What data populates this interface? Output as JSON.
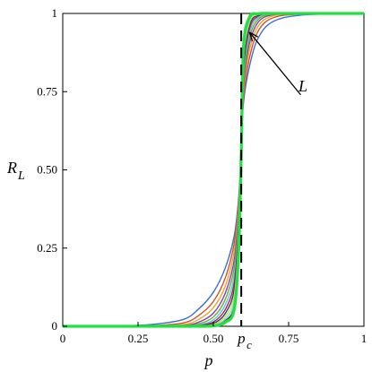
{
  "chart_data": {
    "type": "line",
    "title": "",
    "xlabel": "p",
    "ylabel": "R",
    "ylabel_subscript": "L",
    "xlim": [
      0,
      1
    ],
    "ylim": [
      0,
      1
    ],
    "grid": false,
    "legend": "none",
    "x_ticks": [
      {
        "value": 0,
        "label": "0"
      },
      {
        "value": 0.25,
        "label": "0.25"
      },
      {
        "value": 0.5,
        "label": "0.50"
      },
      {
        "value": 0.75,
        "label": "0.75"
      },
      {
        "value": 1,
        "label": "1"
      }
    ],
    "y_ticks": [
      {
        "value": 0,
        "label": "0"
      },
      {
        "value": 0.25,
        "label": "0.25"
      },
      {
        "value": 0.5,
        "label": "0.50"
      },
      {
        "value": 0.75,
        "label": "0.75"
      },
      {
        "value": 1,
        "label": "1"
      }
    ],
    "critical_line": {
      "x": 0.5927,
      "label": "p",
      "label_subscript": "c",
      "style": "dashed"
    },
    "crossing_point": {
      "x": 0.5927,
      "y": 0.5927
    },
    "annotation": {
      "text": "L",
      "arrow_from": [
        0.79,
        0.74
      ],
      "arrow_to": [
        0.62,
        0.94
      ]
    },
    "series": [
      {
        "color": "#3b6fcf",
        "values": [
          0.0,
          0.0001,
          0.0011,
          0.0061,
          0.0216,
          0.0542,
          0.1087,
          0.1875,
          0.2924,
          0.4231,
          0.5724,
          0.7135,
          0.8314,
          0.9236,
          0.9748,
          0.9955,
          1.0
        ]
      },
      {
        "color": "#d4502a",
        "values": [
          0.0,
          0.0,
          0.0002,
          0.0021,
          0.0106,
          0.0335,
          0.0791,
          0.1556,
          0.2697,
          0.4113,
          0.5709,
          0.7311,
          0.8587,
          0.9455,
          0.9867,
          0.9984,
          1.0
        ]
      },
      {
        "color": "#e8a72a",
        "values": [
          0.0,
          0.0,
          0.0001,
          0.0008,
          0.0055,
          0.0213,
          0.0593,
          0.1297,
          0.2437,
          0.3993,
          0.5694,
          0.7502,
          0.8827,
          0.9611,
          0.9928,
          0.9994,
          1.0
        ]
      },
      {
        "color": "#8a3fa8",
        "values": [
          0.0,
          0.0,
          0.0,
          0.0003,
          0.0025,
          0.0127,
          0.0418,
          0.1067,
          0.2168,
          0.3842,
          0.5679,
          0.7689,
          0.9044,
          0.9734,
          0.9961,
          0.9998,
          1.0
        ]
      },
      {
        "color": "#6fae2c",
        "values": [
          0.0,
          0.0,
          0.0,
          0.0001,
          0.0012,
          0.0076,
          0.0297,
          0.0869,
          0.1917,
          0.3705,
          0.5664,
          0.7868,
          0.9224,
          0.9819,
          0.9979,
          0.9999,
          1.0
        ]
      },
      {
        "color": "#4fc8e8",
        "values": [
          0.0,
          0.0,
          0.0,
          0.0,
          0.0005,
          0.0044,
          0.0204,
          0.0692,
          0.1665,
          0.3553,
          0.5649,
          0.8041,
          0.9383,
          0.9881,
          0.9989,
          1.0,
          1.0
        ]
      },
      {
        "color": "#b8203a",
        "values": [
          0.0,
          0.0,
          0.0,
          0.0,
          0.0002,
          0.0024,
          0.0136,
          0.0543,
          0.1432,
          0.3402,
          0.5634,
          0.8208,
          0.9516,
          0.9925,
          0.9995,
          1.0,
          1.0
        ]
      },
      {
        "color": "#1f3f9a",
        "values": [
          0.0,
          0.0,
          0.0,
          0.0,
          0.0001,
          0.0013,
          0.0089,
          0.0419,
          0.1218,
          0.3254,
          0.5619,
          0.8366,
          0.9626,
          0.9953,
          0.9998,
          1.0,
          1.0
        ]
      },
      {
        "color": "#e0e020",
        "values": [
          0.0,
          0.0,
          0.0,
          0.0,
          0.0,
          0.0007,
          0.0057,
          0.0318,
          0.1024,
          0.3103,
          0.5604,
          0.8515,
          0.9713,
          0.9971,
          0.9999,
          1.0,
          1.0
        ]
      },
      {
        "color": "#78d0f0",
        "values": [
          0.0,
          0.0,
          0.0,
          0.0,
          0.0,
          0.0004,
          0.0035,
          0.0238,
          0.0851,
          0.2951,
          0.5589,
          0.8653,
          0.9784,
          0.9983,
          1.0,
          1.0,
          1.0
        ]
      },
      {
        "color": "#2c2c2c",
        "values": [
          0.0,
          0.0,
          0.0,
          0.0,
          0.0,
          0.0002,
          0.0021,
          0.0176,
          0.0701,
          0.2796,
          0.5574,
          0.8781,
          0.9838,
          0.999,
          1.0,
          1.0,
          1.0
        ]
      },
      {
        "color": "#22e040",
        "values": [
          0.0,
          0.0,
          0.0,
          0.0,
          0.0,
          0.0001,
          0.0012,
          0.0128,
          0.0573,
          0.2642,
          0.5559,
          0.8899,
          0.9881,
          0.9994,
          1.0,
          1.0,
          1.0
        ]
      }
    ],
    "x": [
      0.0,
      0.1,
      0.2,
      0.3,
      0.4,
      0.45,
      0.5,
      0.54,
      0.57,
      0.585,
      0.5927,
      0.6,
      0.62,
      0.65,
      0.7,
      0.8,
      1.0
    ]
  }
}
